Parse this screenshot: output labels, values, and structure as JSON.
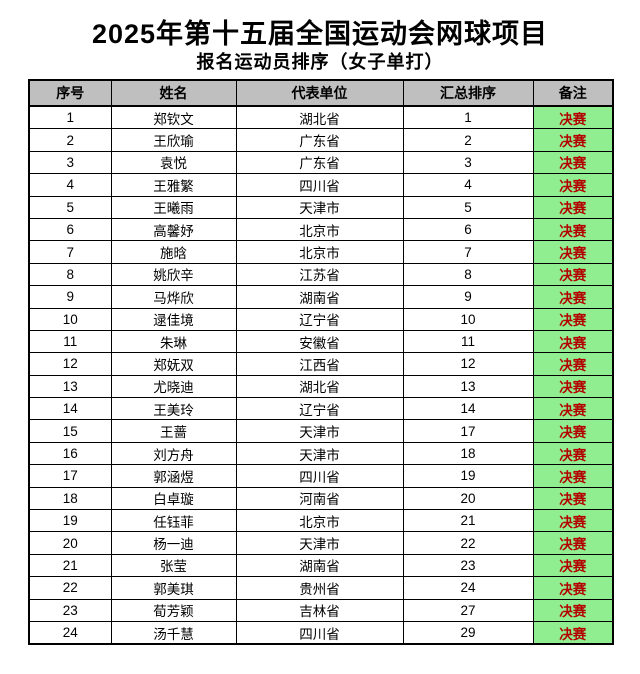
{
  "title": "2025年第十五届全国运动会网球项目",
  "subtitle": "报名运动员排序（女子单打）",
  "colors": {
    "header_bg": "#bfbfbf",
    "remark_bg": "#90ee90",
    "remark_text": "#b30000",
    "border": "#000000"
  },
  "table": {
    "columns": [
      "序号",
      "姓名",
      "代表单位",
      "汇总排序",
      "备注"
    ],
    "rows": [
      {
        "no": "1",
        "name": "郑钦文",
        "unit": "湖北省",
        "rank": "1",
        "remark": "决赛"
      },
      {
        "no": "2",
        "name": "王欣瑜",
        "unit": "广东省",
        "rank": "2",
        "remark": "决赛"
      },
      {
        "no": "3",
        "name": "袁悦",
        "unit": "广东省",
        "rank": "3",
        "remark": "决赛"
      },
      {
        "no": "4",
        "name": "王雅繁",
        "unit": "四川省",
        "rank": "4",
        "remark": "决赛"
      },
      {
        "no": "5",
        "name": "王曦雨",
        "unit": "天津市",
        "rank": "5",
        "remark": "决赛"
      },
      {
        "no": "6",
        "name": "高馨妤",
        "unit": "北京市",
        "rank": "6",
        "remark": "决赛"
      },
      {
        "no": "7",
        "name": "施晗",
        "unit": "北京市",
        "rank": "7",
        "remark": "决赛"
      },
      {
        "no": "8",
        "name": "姚欣辛",
        "unit": "江苏省",
        "rank": "8",
        "remark": "决赛"
      },
      {
        "no": "9",
        "name": "马烨欣",
        "unit": "湖南省",
        "rank": "9",
        "remark": "决赛"
      },
      {
        "no": "10",
        "name": "逯佳境",
        "unit": "辽宁省",
        "rank": "10",
        "remark": "决赛"
      },
      {
        "no": "11",
        "name": "朱琳",
        "unit": "安徽省",
        "rank": "11",
        "remark": "决赛"
      },
      {
        "no": "12",
        "name": "郑妩双",
        "unit": "江西省",
        "rank": "12",
        "remark": "决赛"
      },
      {
        "no": "13",
        "name": "尤晓迪",
        "unit": "湖北省",
        "rank": "13",
        "remark": "决赛"
      },
      {
        "no": "14",
        "name": "王美玲",
        "unit": "辽宁省",
        "rank": "14",
        "remark": "决赛"
      },
      {
        "no": "15",
        "name": "王蔷",
        "unit": "天津市",
        "rank": "17",
        "remark": "决赛"
      },
      {
        "no": "16",
        "name": "刘方舟",
        "unit": "天津市",
        "rank": "18",
        "remark": "决赛"
      },
      {
        "no": "17",
        "name": "郭涵煜",
        "unit": "四川省",
        "rank": "19",
        "remark": "决赛"
      },
      {
        "no": "18",
        "name": "白卓璇",
        "unit": "河南省",
        "rank": "20",
        "remark": "决赛"
      },
      {
        "no": "19",
        "name": "任钰菲",
        "unit": "北京市",
        "rank": "21",
        "remark": "决赛"
      },
      {
        "no": "20",
        "name": "杨一迪",
        "unit": "天津市",
        "rank": "22",
        "remark": "决赛"
      },
      {
        "no": "21",
        "name": "张莹",
        "unit": "湖南省",
        "rank": "23",
        "remark": "决赛"
      },
      {
        "no": "22",
        "name": "郭美琪",
        "unit": "贵州省",
        "rank": "24",
        "remark": "决赛"
      },
      {
        "no": "23",
        "name": "荀芳颖",
        "unit": "吉林省",
        "rank": "27",
        "remark": "决赛"
      },
      {
        "no": "24",
        "name": "汤千慧",
        "unit": "四川省",
        "rank": "29",
        "remark": "决赛"
      }
    ]
  }
}
